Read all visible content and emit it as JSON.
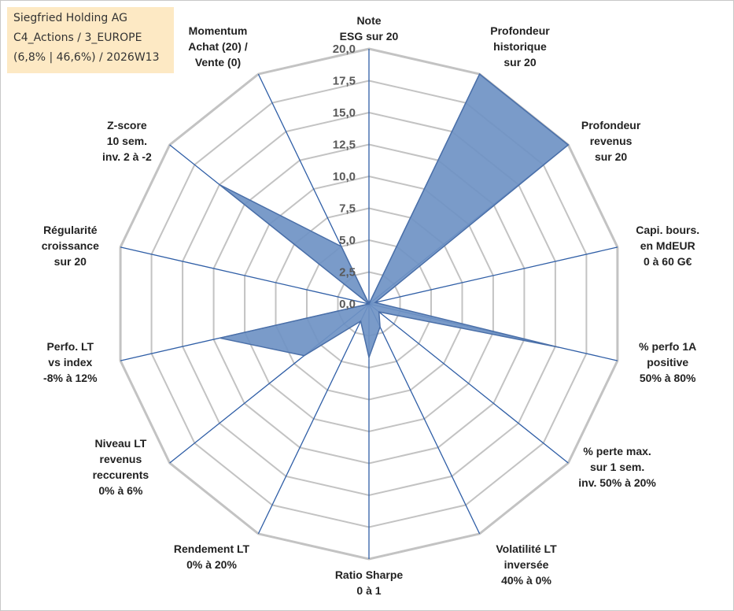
{
  "info_box": {
    "line1": "Siegfried Holding AG",
    "line2": "C4_Actions / 3_EUROPE",
    "line3": "(6,8% | 46,6%) / 2026W13"
  },
  "colors": {
    "grid": "#c3c3c3",
    "spoke": "#2f5ea6",
    "fill": "#6f93c4",
    "stroke": "#4a6fa8"
  },
  "chart_data": {
    "type": "radar",
    "title": "",
    "scale": {
      "min": 0,
      "max": 20,
      "step": 2.5
    },
    "ticks": [
      "0,0",
      "2,5",
      "5,0",
      "7,5",
      "10,0",
      "12,5",
      "15,0",
      "17,5",
      "20,0"
    ],
    "axes": [
      [
        "Note",
        "ESG sur 20"
      ],
      [
        "Profondeur",
        "historique",
        "sur 20"
      ],
      [
        "Profondeur",
        "revenus",
        "sur 20"
      ],
      [
        "Capi. bours.",
        "en MdEUR",
        "0 à 60 G€"
      ],
      [
        "% perfo 1A",
        "positive",
        "50% à 80%"
      ],
      [
        "% perte max.",
        "sur 1 sem.",
        "inv. 50% à 20%"
      ],
      [
        "Volatilité LT",
        "inversée",
        "40% à 0%"
      ],
      [
        "Ratio Sharpe",
        "0 à 1"
      ],
      [
        "Rendement LT",
        "0% à 20%"
      ],
      [
        "Niveau LT",
        "revenus",
        "reccurents",
        "0% à 6%"
      ],
      [
        "Perfo. LT",
        "vs index",
        "-8% à 12%"
      ],
      [
        "Régularité",
        "croissance",
        "sur 20"
      ],
      [
        "Z-score",
        "10 sem.",
        "inv. 2 à -2"
      ],
      [
        "Momentum",
        "Achat (20) /",
        "Vente (0)"
      ]
    ],
    "series": [
      {
        "values": [
          0,
          20,
          20,
          0.5,
          15.3,
          1,
          2,
          4.2,
          1.5,
          6.5,
          12,
          0,
          15,
          5
        ]
      }
    ]
  }
}
